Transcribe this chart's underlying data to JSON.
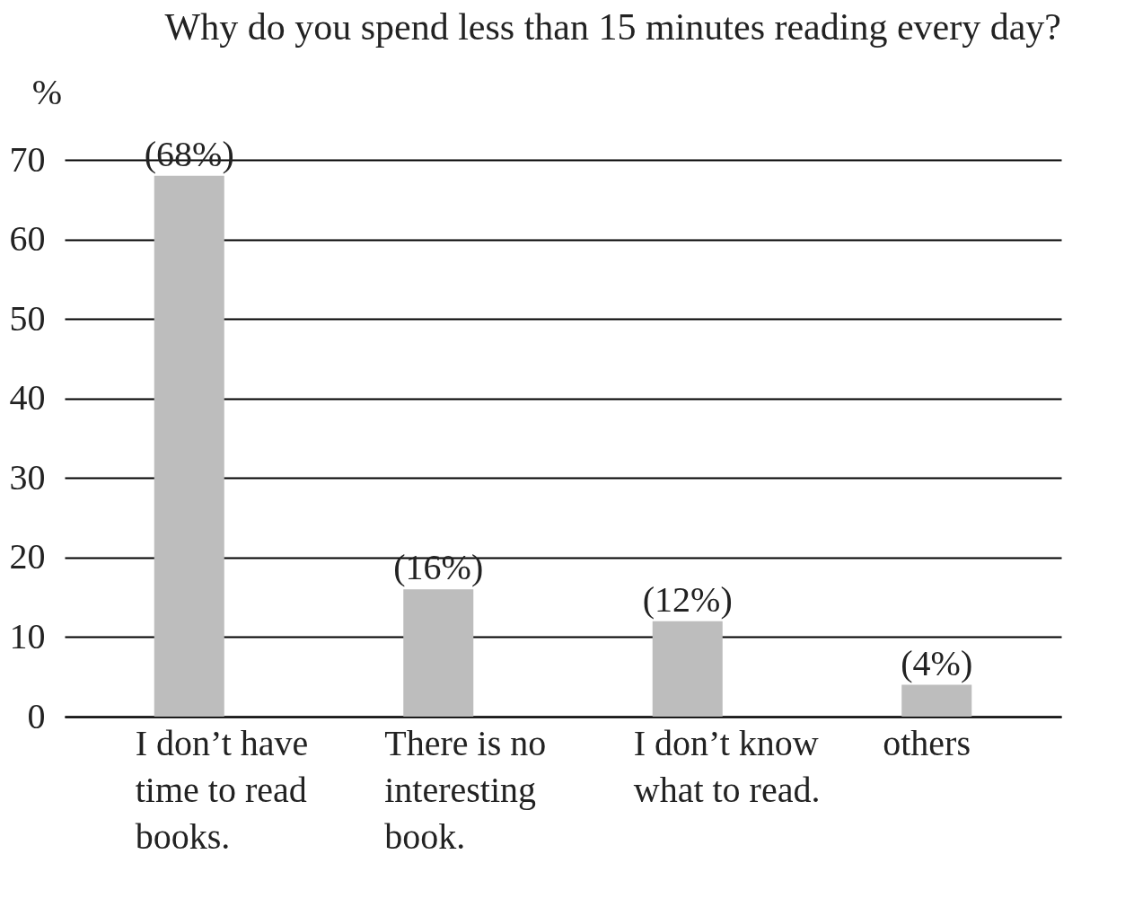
{
  "chart_data": {
    "type": "bar",
    "title": "Why do you spend less than 15 minutes reading every day?",
    "ylabel": "%",
    "categories": [
      "I don’t have time to read books.",
      "There is no interesting book.",
      "I don’t know what to read.",
      "others"
    ],
    "values": [
      68,
      16,
      12,
      4
    ],
    "value_labels": [
      "(68%)",
      "(16%)",
      "(12%)",
      "(4%)"
    ],
    "color": "#bdbdbd",
    "ylim": [
      0,
      70
    ],
    "yticks": [
      0,
      10,
      20,
      30,
      40,
      50,
      60,
      70
    ],
    "grid": "y"
  }
}
